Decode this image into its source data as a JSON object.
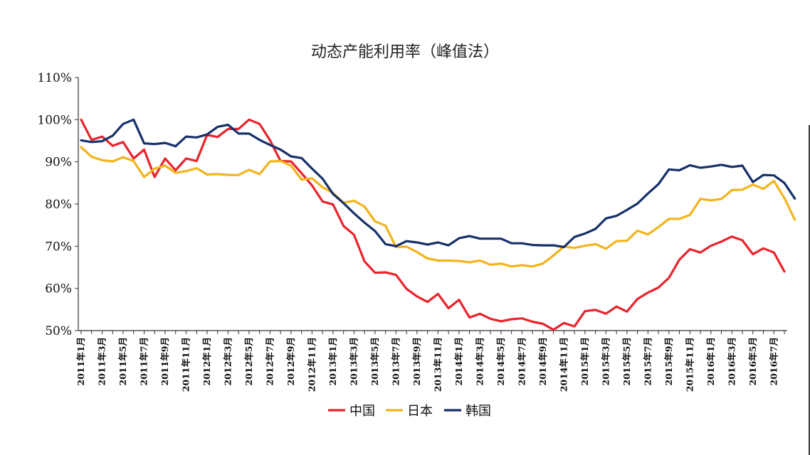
{
  "chart_data": {
    "type": "line",
    "title": "动态产能利用率（峰值法）",
    "xlabel": "",
    "ylabel": "",
    "ylim": [
      50,
      110
    ],
    "y_ticks": [
      "50%",
      "60%",
      "70%",
      "80%",
      "90%",
      "100%",
      "110%"
    ],
    "y_tick_values": [
      50,
      60,
      70,
      80,
      90,
      100,
      110
    ],
    "grid": false,
    "legend_position": "bottom-center",
    "x_tick_labels": [
      "2011年1月",
      "2011年3月",
      "2011年5月",
      "2011年7月",
      "2011年9月",
      "2011年11月",
      "2012年1月",
      "2012年3月",
      "2012年5月",
      "2012年7月",
      "2012年9月",
      "2012年11月",
      "2013年1月",
      "2013年3月",
      "2013年5月",
      "2013年7月",
      "2013年9月",
      "2013年11月",
      "2014年1月",
      "2014年3月",
      "2014年5月",
      "2014年7月",
      "2014年9月",
      "2014年11月",
      "2015年1月",
      "2015年3月",
      "2015年5月",
      "2015年7月",
      "2015年9月",
      "2015年11月",
      "2016年1月",
      "2016年3月",
      "2016年5月",
      "2016年7月"
    ],
    "series": [
      {
        "name": "中国",
        "color": "#e8232b",
        "values": [
          100,
          95.2,
          96,
          93.8,
          94.7,
          90.8,
          92.9,
          86.4,
          90.8,
          88,
          90.8,
          90.2,
          96.4,
          95.9,
          97.8,
          97.8,
          100,
          99,
          95.1,
          90.2,
          90.1,
          87.3,
          84.4,
          80.6,
          79.9,
          74.8,
          72.7,
          66.4,
          63.7,
          63.8,
          63.2,
          59.9,
          58.1,
          56.8,
          58.7,
          55.3,
          57.3,
          53.1,
          54,
          52.8,
          52.2,
          52.7,
          52.9,
          52.1,
          51.6,
          50.2,
          51.8,
          51,
          54.6,
          54.9,
          54,
          55.7,
          54.5,
          57.5,
          59,
          60.2,
          62.5,
          66.8,
          69.3,
          68.5,
          70.1,
          71.1,
          72.3,
          71.4,
          68.1,
          69.5,
          68.5,
          64
        ]
      },
      {
        "name": "日本",
        "color": "#f2b41b",
        "values": [
          93.5,
          91.2,
          90.4,
          90.1,
          91.1,
          90.2,
          86.4,
          88.4,
          89.1,
          87.4,
          87.8,
          88.5,
          87,
          87.1,
          86.9,
          86.9,
          88.1,
          87.1,
          90.1,
          90.2,
          89.1,
          85.8,
          86.1,
          84,
          82.6,
          80.3,
          80.8,
          79.4,
          75.9,
          74.9,
          69.8,
          69.9,
          68.6,
          67.1,
          66.6,
          66.6,
          66.5,
          66.2,
          66.6,
          65.6,
          65.9,
          65.2,
          65.5,
          65.2,
          65.9,
          67.8,
          69.9,
          69.6,
          70.1,
          70.5,
          69.4,
          71.2,
          71.3,
          73.7,
          72.8,
          74.5,
          76.5,
          76.5,
          77.4,
          81.2,
          80.9,
          81.2,
          83.3,
          83.4,
          84.6,
          83.6,
          85.5,
          81.4,
          76.3
        ]
      },
      {
        "name": "韩国",
        "color": "#16306a",
        "values": [
          95.1,
          94.7,
          94.9,
          96.2,
          99,
          100,
          94.4,
          94.2,
          94.5,
          93.7,
          96,
          95.8,
          96.5,
          98.3,
          98.8,
          96.7,
          96.7,
          95.2,
          94,
          92.9,
          91.3,
          90.9,
          88.4,
          86,
          82.4,
          80.2,
          77.8,
          75.6,
          73.6,
          70.5,
          70,
          71.2,
          70.9,
          70.4,
          70.9,
          70.2,
          71.9,
          72.4,
          71.8,
          71.8,
          71.8,
          70.7,
          70.7,
          70.3,
          70.2,
          70.2,
          69.8,
          72.2,
          73,
          74.1,
          76.6,
          77.2,
          78.6,
          80.1,
          82.5,
          84.7,
          88.2,
          88,
          89.2,
          88.6,
          88.9,
          89.3,
          88.8,
          89.1,
          85.2,
          86.9,
          86.8,
          85,
          81.3
        ]
      }
    ]
  }
}
